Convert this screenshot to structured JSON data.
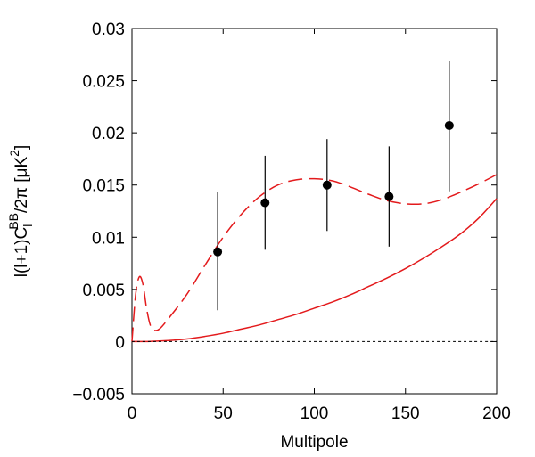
{
  "chart_data": {
    "type": "scatter",
    "xlabel": "Multipole",
    "ylabel": {
      "prefix": "l(l+1)C",
      "sub": "l",
      "sup": "BB",
      "suffix": "/2π [μK",
      "unit_sup": "2",
      "close": "]"
    },
    "xlim": [
      0,
      200
    ],
    "ylim": [
      -0.005,
      0.03
    ],
    "x_ticks": [
      0,
      50,
      100,
      150,
      200
    ],
    "x_tick_labels": [
      "0",
      "50",
      "100",
      "150",
      "200"
    ],
    "y_ticks": [
      -0.005,
      0,
      0.005,
      0.01,
      0.015,
      0.02,
      0.025,
      0.03
    ],
    "y_tick_labels": [
      "−0.005",
      "0",
      "0.005",
      "0.01",
      "0.015",
      "0.02",
      "0.025",
      "0.03"
    ],
    "grid": false,
    "series": [
      {
        "kind": "points_with_errorbars",
        "color": "#000000",
        "points": [
          {
            "x": 47,
            "y": 0.0086,
            "ylow": 0.003,
            "yhigh": 0.0143
          },
          {
            "x": 73,
            "y": 0.0133,
            "ylow": 0.0088,
            "yhigh": 0.0178
          },
          {
            "x": 107,
            "y": 0.015,
            "ylow": 0.0106,
            "yhigh": 0.0194
          },
          {
            "x": 141,
            "y": 0.0139,
            "ylow": 0.0091,
            "yhigh": 0.0187
          },
          {
            "x": 174,
            "y": 0.0207,
            "ylow": 0.0144,
            "yhigh": 0.0269
          }
        ]
      },
      {
        "kind": "line",
        "style": "dashed",
        "color": "#e31a1c",
        "x": [
          0,
          2,
          4,
          6,
          8,
          10,
          12,
          15,
          20,
          30,
          40,
          50,
          60,
          70,
          80,
          90,
          100,
          110,
          120,
          130,
          140,
          150,
          160,
          170,
          180,
          190,
          200
        ],
        "y": [
          0,
          0.0045,
          0.0062,
          0.0055,
          0.0032,
          0.0016,
          0.0011,
          0.0012,
          0.0022,
          0.0045,
          0.0073,
          0.01,
          0.0122,
          0.0139,
          0.015,
          0.0155,
          0.0156,
          0.0154,
          0.0148,
          0.0141,
          0.0135,
          0.0132,
          0.0132,
          0.0136,
          0.0143,
          0.0151,
          0.016
        ]
      },
      {
        "kind": "line",
        "style": "solid",
        "color": "#e31a1c",
        "x": [
          0,
          10,
          20,
          30,
          40,
          50,
          60,
          70,
          80,
          90,
          100,
          110,
          120,
          130,
          140,
          150,
          160,
          170,
          180,
          190,
          200
        ],
        "y": [
          0,
          2e-05,
          0.0001,
          0.00025,
          0.0005,
          0.0008,
          0.0012,
          0.0016,
          0.0021,
          0.0026,
          0.0032,
          0.0038,
          0.0045,
          0.0053,
          0.0061,
          0.007,
          0.008,
          0.0091,
          0.0103,
          0.0118,
          0.0137
        ]
      },
      {
        "kind": "line",
        "style": "dotted",
        "color": "#000000",
        "x": [
          0,
          200
        ],
        "y": [
          0,
          0
        ]
      }
    ]
  }
}
